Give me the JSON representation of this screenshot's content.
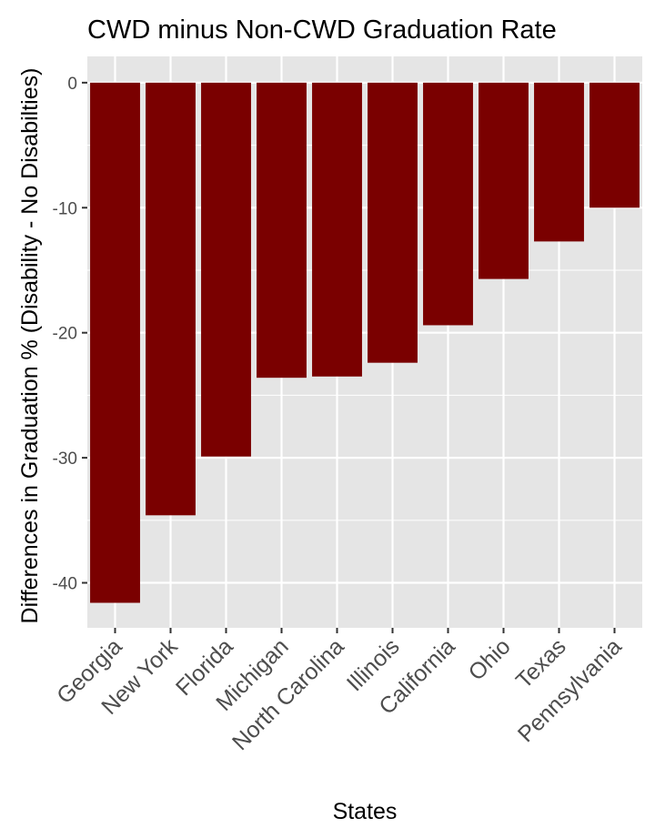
{
  "chart_data": {
    "type": "bar",
    "title": "CWD minus Non-CWD Graduation Rate",
    "xlabel": "States",
    "ylabel": "Differences in Graduation % (Disability - No Disabilties)",
    "categories": [
      "Georgia",
      "New York",
      "Florida",
      "Michigan",
      "North Carolina",
      "Illinois",
      "California",
      "Ohio",
      "Texas",
      "Pennsylvania"
    ],
    "values": [
      -41.6,
      -34.6,
      -29.9,
      -23.6,
      -23.5,
      -22.4,
      -19.4,
      -15.7,
      -12.7,
      -10.0
    ],
    "ylim": [
      -43.6,
      2.1
    ],
    "yticks": [
      0,
      -10,
      -20,
      -30,
      -40
    ],
    "ytick_labels": [
      "0",
      "-10",
      "-20",
      "-30",
      "-40"
    ],
    "grid": true,
    "legend": "none",
    "colors": {
      "bar": "#7a0000",
      "panel": "#e5e5e5",
      "grid": "#ffffff",
      "tick_text": "#4d4d4d"
    }
  }
}
